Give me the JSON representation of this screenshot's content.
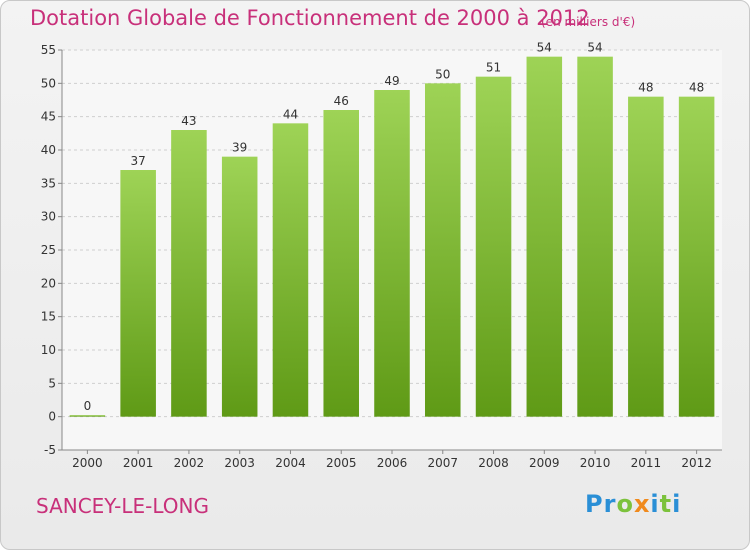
{
  "header": {
    "title": "Dotation Globale de Fonctionnement de 2000 à 2012",
    "subtitle": "(en milliers d'€)"
  },
  "footer": {
    "place": "SANCEY-LE-LONG",
    "logo_letters": [
      "P",
      "r",
      "o",
      "x",
      "i",
      "t",
      "i"
    ]
  },
  "colors": {
    "title": "#c8307a",
    "bar_top": "#9ed356",
    "bar_bottom": "#5f9a16",
    "grid": "#cfcfcf",
    "axis_text": "#333333"
  },
  "chart_data": {
    "type": "bar",
    "title": "Dotation Globale de Fonctionnement de 2000 à 2012",
    "subtitle": "(en milliers d'€)",
    "xlabel": "",
    "ylabel": "",
    "categories": [
      "2000",
      "2001",
      "2002",
      "2003",
      "2004",
      "2005",
      "2006",
      "2007",
      "2008",
      "2009",
      "2010",
      "2011",
      "2012"
    ],
    "values": [
      0,
      37,
      43,
      39,
      44,
      46,
      49,
      50,
      51,
      54,
      54,
      48,
      48
    ],
    "ylim": [
      -5,
      55
    ],
    "yticks": [
      -5,
      0,
      5,
      10,
      15,
      20,
      25,
      30,
      35,
      40,
      45,
      50,
      55
    ],
    "grid": "horizontal dashed",
    "legend": "none"
  }
}
